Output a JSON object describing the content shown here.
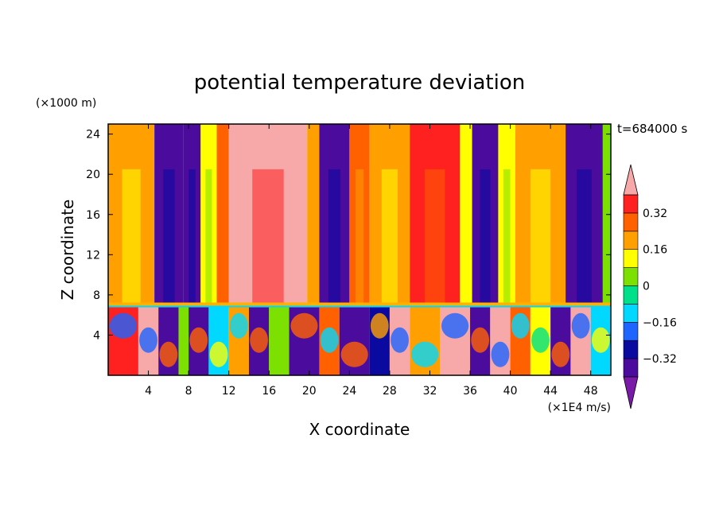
{
  "chart_data": {
    "type": "heatmap",
    "title": "potential temperature deviation",
    "xlabel": "X coordinate",
    "ylabel": "Z coordinate",
    "x_unit": "(×1E4 m/s)",
    "y_unit": "(×1000 m)",
    "time_label": "t=684000 s",
    "xlim": [
      0,
      50
    ],
    "ylim": [
      0,
      25
    ],
    "x_ticks": [
      4,
      8,
      12,
      16,
      20,
      24,
      28,
      32,
      36,
      40,
      44,
      48
    ],
    "y_ticks": [
      4,
      8,
      12,
      16,
      20,
      24
    ],
    "colorbar": {
      "levels": [
        -0.4,
        -0.32,
        -0.24,
        -0.16,
        -0.08,
        0,
        0.08,
        0.16,
        0.24,
        0.32,
        0.4
      ],
      "tick_labels": [
        "0.32",
        "0.16",
        "0",
        "−0.16",
        "−0.32"
      ],
      "tick_values": [
        0.32,
        0.16,
        0,
        -0.16,
        -0.32
      ],
      "colors": [
        "#7a1aa8",
        "#4b0c9e",
        "#0a0aa0",
        "#1e64ff",
        "#00d8ff",
        "#00e08a",
        "#7ce000",
        "#ffff00",
        "#ffa000",
        "#ff6000",
        "#ff2020",
        "#f7a8a8"
      ]
    },
    "upper_columns": [
      {
        "x0": 0,
        "x1": 4.6,
        "level": 0.2
      },
      {
        "x0": 4.6,
        "x1": 7.5,
        "level": -0.4
      },
      {
        "x0": 7.5,
        "x1": 9.2,
        "level": -0.35
      },
      {
        "x0": 9.2,
        "x1": 10.8,
        "level": 0.1
      },
      {
        "x0": 10.8,
        "x1": 12.0,
        "level": 0.24
      },
      {
        "x0": 12.0,
        "x1": 19.8,
        "level": 0.4
      },
      {
        "x0": 19.8,
        "x1": 21.0,
        "level": 0.2
      },
      {
        "x0": 21.0,
        "x1": 24.0,
        "level": -0.4
      },
      {
        "x0": 24.0,
        "x1": 26.0,
        "level": 0.3
      },
      {
        "x0": 26.0,
        "x1": 30.0,
        "level": 0.2
      },
      {
        "x0": 30.0,
        "x1": 35.0,
        "level": 0.32
      },
      {
        "x0": 35.0,
        "x1": 36.2,
        "level": 0.1
      },
      {
        "x0": 36.2,
        "x1": 38.8,
        "level": -0.4
      },
      {
        "x0": 38.8,
        "x1": 40.5,
        "level": 0.12
      },
      {
        "x0": 40.5,
        "x1": 45.5,
        "level": 0.2
      },
      {
        "x0": 45.5,
        "x1": 49.2,
        "level": -0.4
      },
      {
        "x0": 49.2,
        "x1": 50.0,
        "level": 0.0
      }
    ],
    "lower_patches": [
      {
        "x0": 0,
        "x1": 3,
        "level": 0.32
      },
      {
        "x0": 3,
        "x1": 5,
        "level": 0.4
      },
      {
        "x0": 5,
        "x1": 7,
        "level": -0.4
      },
      {
        "x0": 7,
        "x1": 8,
        "level": 0.0
      },
      {
        "x0": 8,
        "x1": 10,
        "level": -0.4
      },
      {
        "x0": 10,
        "x1": 12,
        "level": -0.16
      },
      {
        "x0": 12,
        "x1": 14,
        "level": 0.2
      },
      {
        "x0": 14,
        "x1": 16,
        "level": -0.4
      },
      {
        "x0": 16,
        "x1": 18,
        "level": 0.0
      },
      {
        "x0": 18,
        "x1": 21,
        "level": -0.4
      },
      {
        "x0": 21,
        "x1": 23,
        "level": 0.24
      },
      {
        "x0": 23,
        "x1": 26,
        "level": -0.4
      },
      {
        "x0": 26,
        "x1": 28,
        "level": -0.32
      },
      {
        "x0": 28,
        "x1": 30,
        "level": 0.4
      },
      {
        "x0": 30,
        "x1": 33,
        "level": 0.2
      },
      {
        "x0": 33,
        "x1": 36,
        "level": 0.4
      },
      {
        "x0": 36,
        "x1": 38,
        "level": -0.4
      },
      {
        "x0": 38,
        "x1": 40,
        "level": 0.4
      },
      {
        "x0": 40,
        "x1": 42,
        "level": 0.24
      },
      {
        "x0": 42,
        "x1": 44,
        "level": 0.08
      },
      {
        "x0": 44,
        "x1": 46,
        "level": -0.4
      },
      {
        "x0": 46,
        "x1": 48,
        "level": 0.4
      },
      {
        "x0": 48,
        "x1": 50,
        "level": -0.16
      }
    ],
    "interface_z": 7,
    "grid": false,
    "legend": "right"
  }
}
